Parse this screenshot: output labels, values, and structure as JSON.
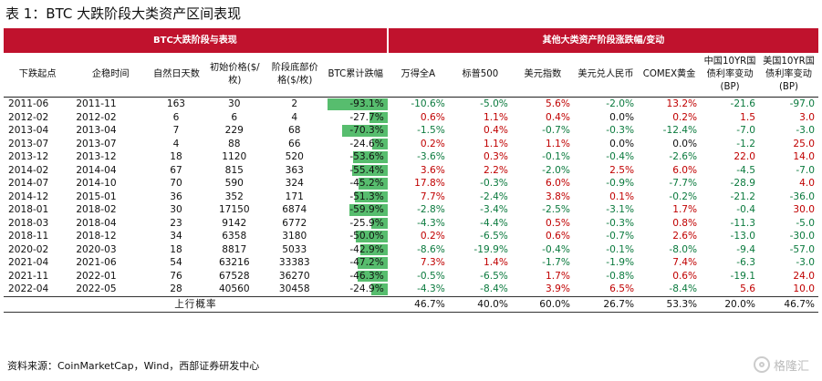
{
  "title": "表 1：BTC 大跌阶段大类资产区间表现",
  "header": {
    "group_left": "BTC大跌阶段与表现",
    "group_right": "其他大类资产阶段涨跌幅/变动",
    "columns": [
      "下跌起点",
      "企稳时间",
      "自然日天数",
      "初始价格($/枚)",
      "阶段底部价格($/枚)",
      "BTC累计跌幅",
      "万得全A",
      "标普500",
      "美元指数",
      "美元兑人民币",
      "COMEX黄金",
      "中国10YR国债利率变动(BP)",
      "美国10YR国债利率变动(BP)"
    ]
  },
  "rows": [
    [
      "2011-06",
      "2011-11",
      "163",
      "30",
      "2",
      "-93.1%",
      "-10.6%",
      "-5.0%",
      "5.6%",
      "-2.0%",
      "13.2%",
      "-21.6",
      "-97.0"
    ],
    [
      "2012-02",
      "2012-02",
      "6",
      "6",
      "4",
      "-27.7%",
      "0.6%",
      "1.1%",
      "0.4%",
      "0.0%",
      "0.2%",
      "1.5",
      "3.0"
    ],
    [
      "2013-04",
      "2013-04",
      "7",
      "229",
      "68",
      "-70.3%",
      "-1.5%",
      "0.4%",
      "-0.7%",
      "-0.3%",
      "-12.4%",
      "-7.0",
      "-3.0"
    ],
    [
      "2013-07",
      "2013-07",
      "4",
      "88",
      "66",
      "-24.6%",
      "0.2%",
      "1.1%",
      "1.1%",
      "0.0%",
      "0.0%",
      "-1.2",
      "25.0"
    ],
    [
      "2013-12",
      "2013-12",
      "18",
      "1120",
      "520",
      "-53.6%",
      "-3.6%",
      "0.3%",
      "-0.1%",
      "-0.4%",
      "-2.6%",
      "22.0",
      "14.0"
    ],
    [
      "2014-02",
      "2014-04",
      "67",
      "815",
      "363",
      "-55.4%",
      "3.6%",
      "2.2%",
      "-2.0%",
      "2.5%",
      "6.0%",
      "-4.5",
      "-7.0"
    ],
    [
      "2014-07",
      "2014-10",
      "70",
      "590",
      "324",
      "-45.2%",
      "17.8%",
      "-0.3%",
      "6.0%",
      "-0.9%",
      "-7.7%",
      "-28.9",
      "4.0"
    ],
    [
      "2014-12",
      "2015-01",
      "36",
      "352",
      "171",
      "-51.3%",
      "7.7%",
      "-2.4%",
      "3.8%",
      "0.1%",
      "-0.2%",
      "-21.2",
      "-36.0"
    ],
    [
      "2018-01",
      "2018-02",
      "30",
      "17150",
      "6874",
      "-59.9%",
      "-2.8%",
      "-3.4%",
      "-2.5%",
      "-3.1%",
      "1.7%",
      "-0.4",
      "30.0"
    ],
    [
      "2018-03",
      "2018-04",
      "23",
      "9142",
      "6772",
      "-25.9%",
      "-4.3%",
      "-4.4%",
      "0.5%",
      "-0.3%",
      "0.8%",
      "-11.3",
      "-5.0"
    ],
    [
      "2018-11",
      "2018-12",
      "34",
      "6358",
      "3180",
      "-50.0%",
      "0.2%",
      "-6.5%",
      "0.6%",
      "-0.7%",
      "2.6%",
      "-13.0",
      "-30.0"
    ],
    [
      "2020-02",
      "2020-03",
      "18",
      "8817",
      "5033",
      "-42.9%",
      "-8.6%",
      "-19.9%",
      "-0.4%",
      "-0.1%",
      "-8.0%",
      "-9.4",
      "-57.0"
    ],
    [
      "2021-04",
      "2021-06",
      "54",
      "63216",
      "33383",
      "-47.2%",
      "7.3%",
      "1.4%",
      "-1.7%",
      "-1.9%",
      "7.4%",
      "-6.3",
      "-3.0"
    ],
    [
      "2021-11",
      "2022-01",
      "76",
      "67528",
      "36270",
      "-46.3%",
      "-0.5%",
      "-6.5%",
      "1.7%",
      "-0.8%",
      "0.6%",
      "-19.1",
      "24.0"
    ],
    [
      "2022-04",
      "2022-05",
      "28",
      "40560",
      "30458",
      "-24.9%",
      "-4.3%",
      "-8.4%",
      "3.9%",
      "6.5%",
      "-8.4%",
      "5.6",
      "10.0"
    ]
  ],
  "btc_bar_color": "#57bd6e",
  "positive_color": "#c00000",
  "negative_color": "#0b7a3e",
  "header_color": "#c0122d",
  "prob_label": "上行概率",
  "prob_values": [
    "46.7%",
    "40.0%",
    "60.0%",
    "26.7%",
    "53.3%",
    "20.0%",
    "46.7%"
  ],
  "source": "资料来源：CoinMarketCap，Wind，西部证券研发中心",
  "watermark": "格隆汇"
}
